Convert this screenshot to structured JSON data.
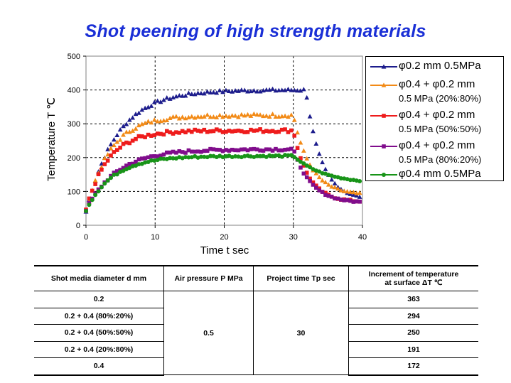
{
  "title": "Shot peening of high strength materials",
  "chart_data": {
    "type": "scatter",
    "xlabel": "Time t sec",
    "ylabel": "Temperature  T ℃",
    "xlim": [
      0,
      40
    ],
    "ylim": [
      0,
      500
    ],
    "xticks": [
      "0",
      "10",
      "20",
      "30",
      "40"
    ],
    "yticks": [
      "0",
      "100",
      "200",
      "300",
      "400",
      "500"
    ],
    "grid": "dashed",
    "legend_position": "right",
    "series": [
      {
        "name": "φ0.2 mm 0.5MPa",
        "sub": "",
        "color": "#1c1c8c",
        "marker": "triangle",
        "plateau": 400,
        "tau": 4.5,
        "endT": 31.8,
        "final": 75,
        "decayTau": 2.2,
        "start": 40,
        "noise": 4
      },
      {
        "name": "φ0.4 + φ0.2 mm",
        "sub": "0.5 MPa (20%:80%)",
        "color": "#f28a16",
        "marker": "triangle",
        "plateau": 325,
        "tau": 3.5,
        "endT": 30.0,
        "final": 88,
        "decayTau": 2.5,
        "start": 40,
        "noise": 5
      },
      {
        "name": "φ0.4 + φ0.2 mm",
        "sub": "0.5 MPa (50%:50%)",
        "color": "#ee1c1c",
        "marker": "square",
        "plateau": 280,
        "tau": 3.2,
        "endT": 30.0,
        "final": 68,
        "decayTau": 2.2,
        "start": 45,
        "noise": 5
      },
      {
        "name": "φ0.4 + φ0.2 mm",
        "sub": "0.5 MPa (80%:20%)",
        "color": "#800d8c",
        "marker": "square",
        "plateau": 225,
        "tau": 4.5,
        "endT": 30.0,
        "final": 65,
        "decayTau": 2.6,
        "start": 45,
        "noise": 4
      },
      {
        "name": "φ0.4 mm 0.5MPa",
        "sub": "",
        "color": "#189418",
        "marker": "circle",
        "plateau": 205,
        "tau": 4.0,
        "endT": 30.0,
        "final": 122,
        "decayTau": 4.5,
        "start": 45,
        "noise": 3
      }
    ]
  },
  "table": {
    "headers": [
      "Shot media diameter d mm",
      "Air pressure P MPa",
      "Project time Tp sec",
      "Increment of temperature at surface ΔT ℃"
    ],
    "header_line1": "Increment of temperature",
    "header_line2": "at surface ΔT ℃",
    "rows": [
      {
        "media": "0.2",
        "increment": "363"
      },
      {
        "media": "0.2 + 0.4 (80%:20%)",
        "increment": "294"
      },
      {
        "media": "0.2 + 0.4 (50%:50%)",
        "increment": "250"
      },
      {
        "media": "0.2 + 0.4 (20%:80%)",
        "increment": "191"
      },
      {
        "media": "0.4",
        "increment": "172"
      }
    ],
    "air_pressure": "0.5",
    "project_time": "30"
  }
}
